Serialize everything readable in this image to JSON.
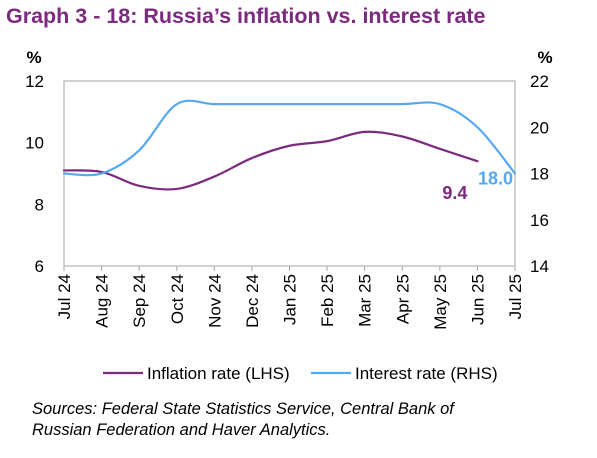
{
  "title": "Graph 3 - 18: Russia’s inflation vs. interest rate",
  "source_lines": [
    "Sources: Federal State Statistics Service, Central Bank of",
    "Russian Federation and Haver Analytics."
  ],
  "chart_data": {
    "type": "line",
    "title": "Graph 3 - 18: Russia’s inflation vs. interest rate",
    "categories": [
      "Jul 24",
      "Aug 24",
      "Sep 24",
      "Oct 24",
      "Nov 24",
      "Dec 24",
      "Jan 25",
      "Feb 25",
      "Mar 25",
      "Apr 25",
      "May 25",
      "Jun 25",
      "Jul 25"
    ],
    "left_axis": {
      "unit": "%",
      "ylim": [
        6,
        12
      ],
      "ticks": [
        6,
        8,
        10,
        12
      ]
    },
    "right_axis": {
      "unit": "%",
      "ylim": [
        14,
        22
      ],
      "ticks": [
        14,
        16,
        18,
        20,
        22
      ]
    },
    "series": [
      {
        "name": "Inflation rate (LHS)",
        "axis": "left",
        "color": "#7B2A7E",
        "values": [
          9.1,
          9.05,
          8.6,
          8.5,
          8.9,
          9.5,
          9.9,
          10.05,
          10.35,
          10.2,
          9.8,
          9.4,
          null
        ],
        "end_label": "9.4"
      },
      {
        "name": "Interest rate (RHS)",
        "axis": "right",
        "color": "#56A8F0",
        "values": [
          18.0,
          18.0,
          19.0,
          21.0,
          21.0,
          21.0,
          21.0,
          21.0,
          21.0,
          21.0,
          21.0,
          20.0,
          18.0
        ],
        "end_label": "18.0"
      }
    ],
    "legend": "bottom",
    "grid": false
  }
}
